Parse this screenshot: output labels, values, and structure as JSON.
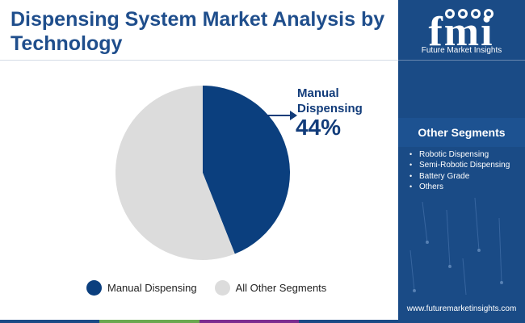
{
  "title": "Dispensing System Market Analysis by Technology",
  "callout": {
    "label_line1": "Manual",
    "label_line2": "Dispensing",
    "percent": "44%"
  },
  "chart_data": {
    "type": "pie",
    "title": "Dispensing System Market Analysis by Technology",
    "slices": [
      {
        "label": "Manual Dispensing",
        "value": 44,
        "color": "#0b3f7e"
      },
      {
        "label": "All Other Segments",
        "value": 56,
        "color": "#dcdcdc"
      }
    ],
    "legend_position": "bottom"
  },
  "legend": [
    {
      "label": "Manual Dispensing",
      "color": "#0b3f7e"
    },
    {
      "label": "All Other Segments",
      "color": "#dcdcdc"
    }
  ],
  "sidebar": {
    "logo_text": "Future Market Insights",
    "logo_letters": "fmi",
    "segments_title": "Other Segments",
    "segments": [
      "Robotic Dispensing",
      "Semi-Robotic Dispensing",
      "Battery Grade",
      "Others"
    ],
    "website": "www.futuremarketinsights.com"
  },
  "colors": {
    "brand_blue": "#1a4b86",
    "title_blue": "#1f4e8c",
    "bottom_bar": [
      "#1a4b86",
      "#6aa84f",
      "#7b2c8f",
      "#1a4b86"
    ]
  }
}
